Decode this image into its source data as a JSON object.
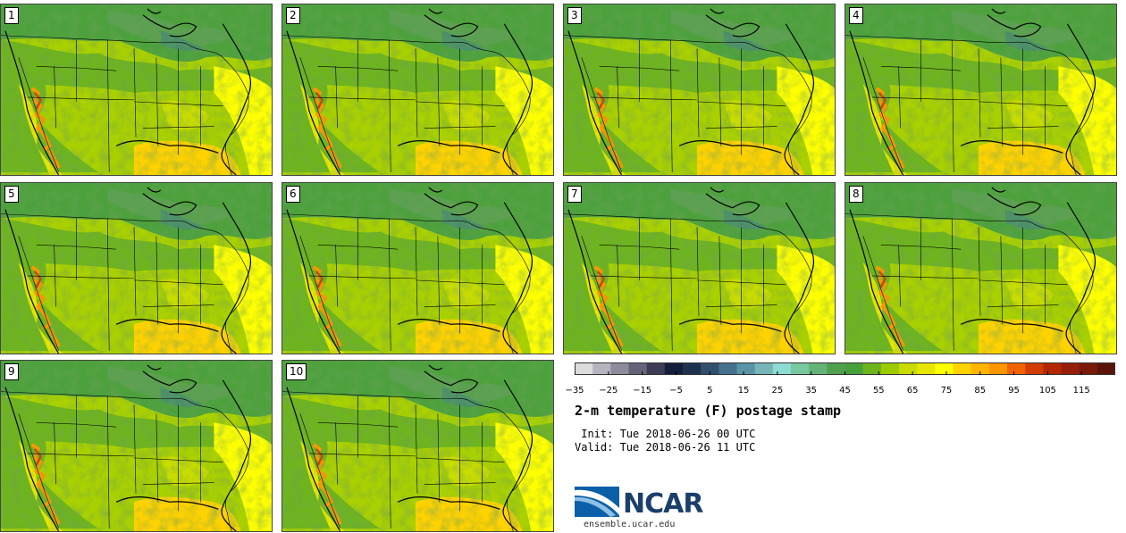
{
  "panels": [
    {
      "label": "1"
    },
    {
      "label": "2"
    },
    {
      "label": "3"
    },
    {
      "label": "4"
    },
    {
      "label": "5"
    },
    {
      "label": "6"
    },
    {
      "label": "7"
    },
    {
      "label": "8"
    },
    {
      "label": "9"
    },
    {
      "label": "10"
    }
  ],
  "colorbar": {
    "min": -35,
    "max": 125,
    "step": 5,
    "ticks": [
      "−35",
      "−25",
      "−15",
      "−5",
      "5",
      "15",
      "25",
      "35",
      "45",
      "55",
      "65",
      "75",
      "85",
      "95",
      "105",
      "115"
    ],
    "colors": [
      "#dcdcdc",
      "#b4b4be",
      "#8c8c9a",
      "#646478",
      "#3c3c56",
      "#141e3c",
      "#1e3250",
      "#32506e",
      "#46708c",
      "#5a94a6",
      "#78b4b8",
      "#8cdcd4",
      "#78c8a0",
      "#64b478",
      "#50a050",
      "#46a03c",
      "#6eb41e",
      "#9bcb00",
      "#c8dc00",
      "#e6e600",
      "#ffff00",
      "#ffd200",
      "#ffb400",
      "#ff9600",
      "#f06400",
      "#d23c00",
      "#b42800",
      "#961e0a",
      "#7a1a0a",
      "#5a1408"
    ]
  },
  "title": "2-m temperature (F) postage stamp",
  "init_line": " Init: Tue 2018-06-26 00 UTC",
  "valid_line": "Valid: Tue 2018-06-26 11 UTC",
  "logo": {
    "name": "NCAR",
    "url": "ensemble.ucar.edu"
  }
}
